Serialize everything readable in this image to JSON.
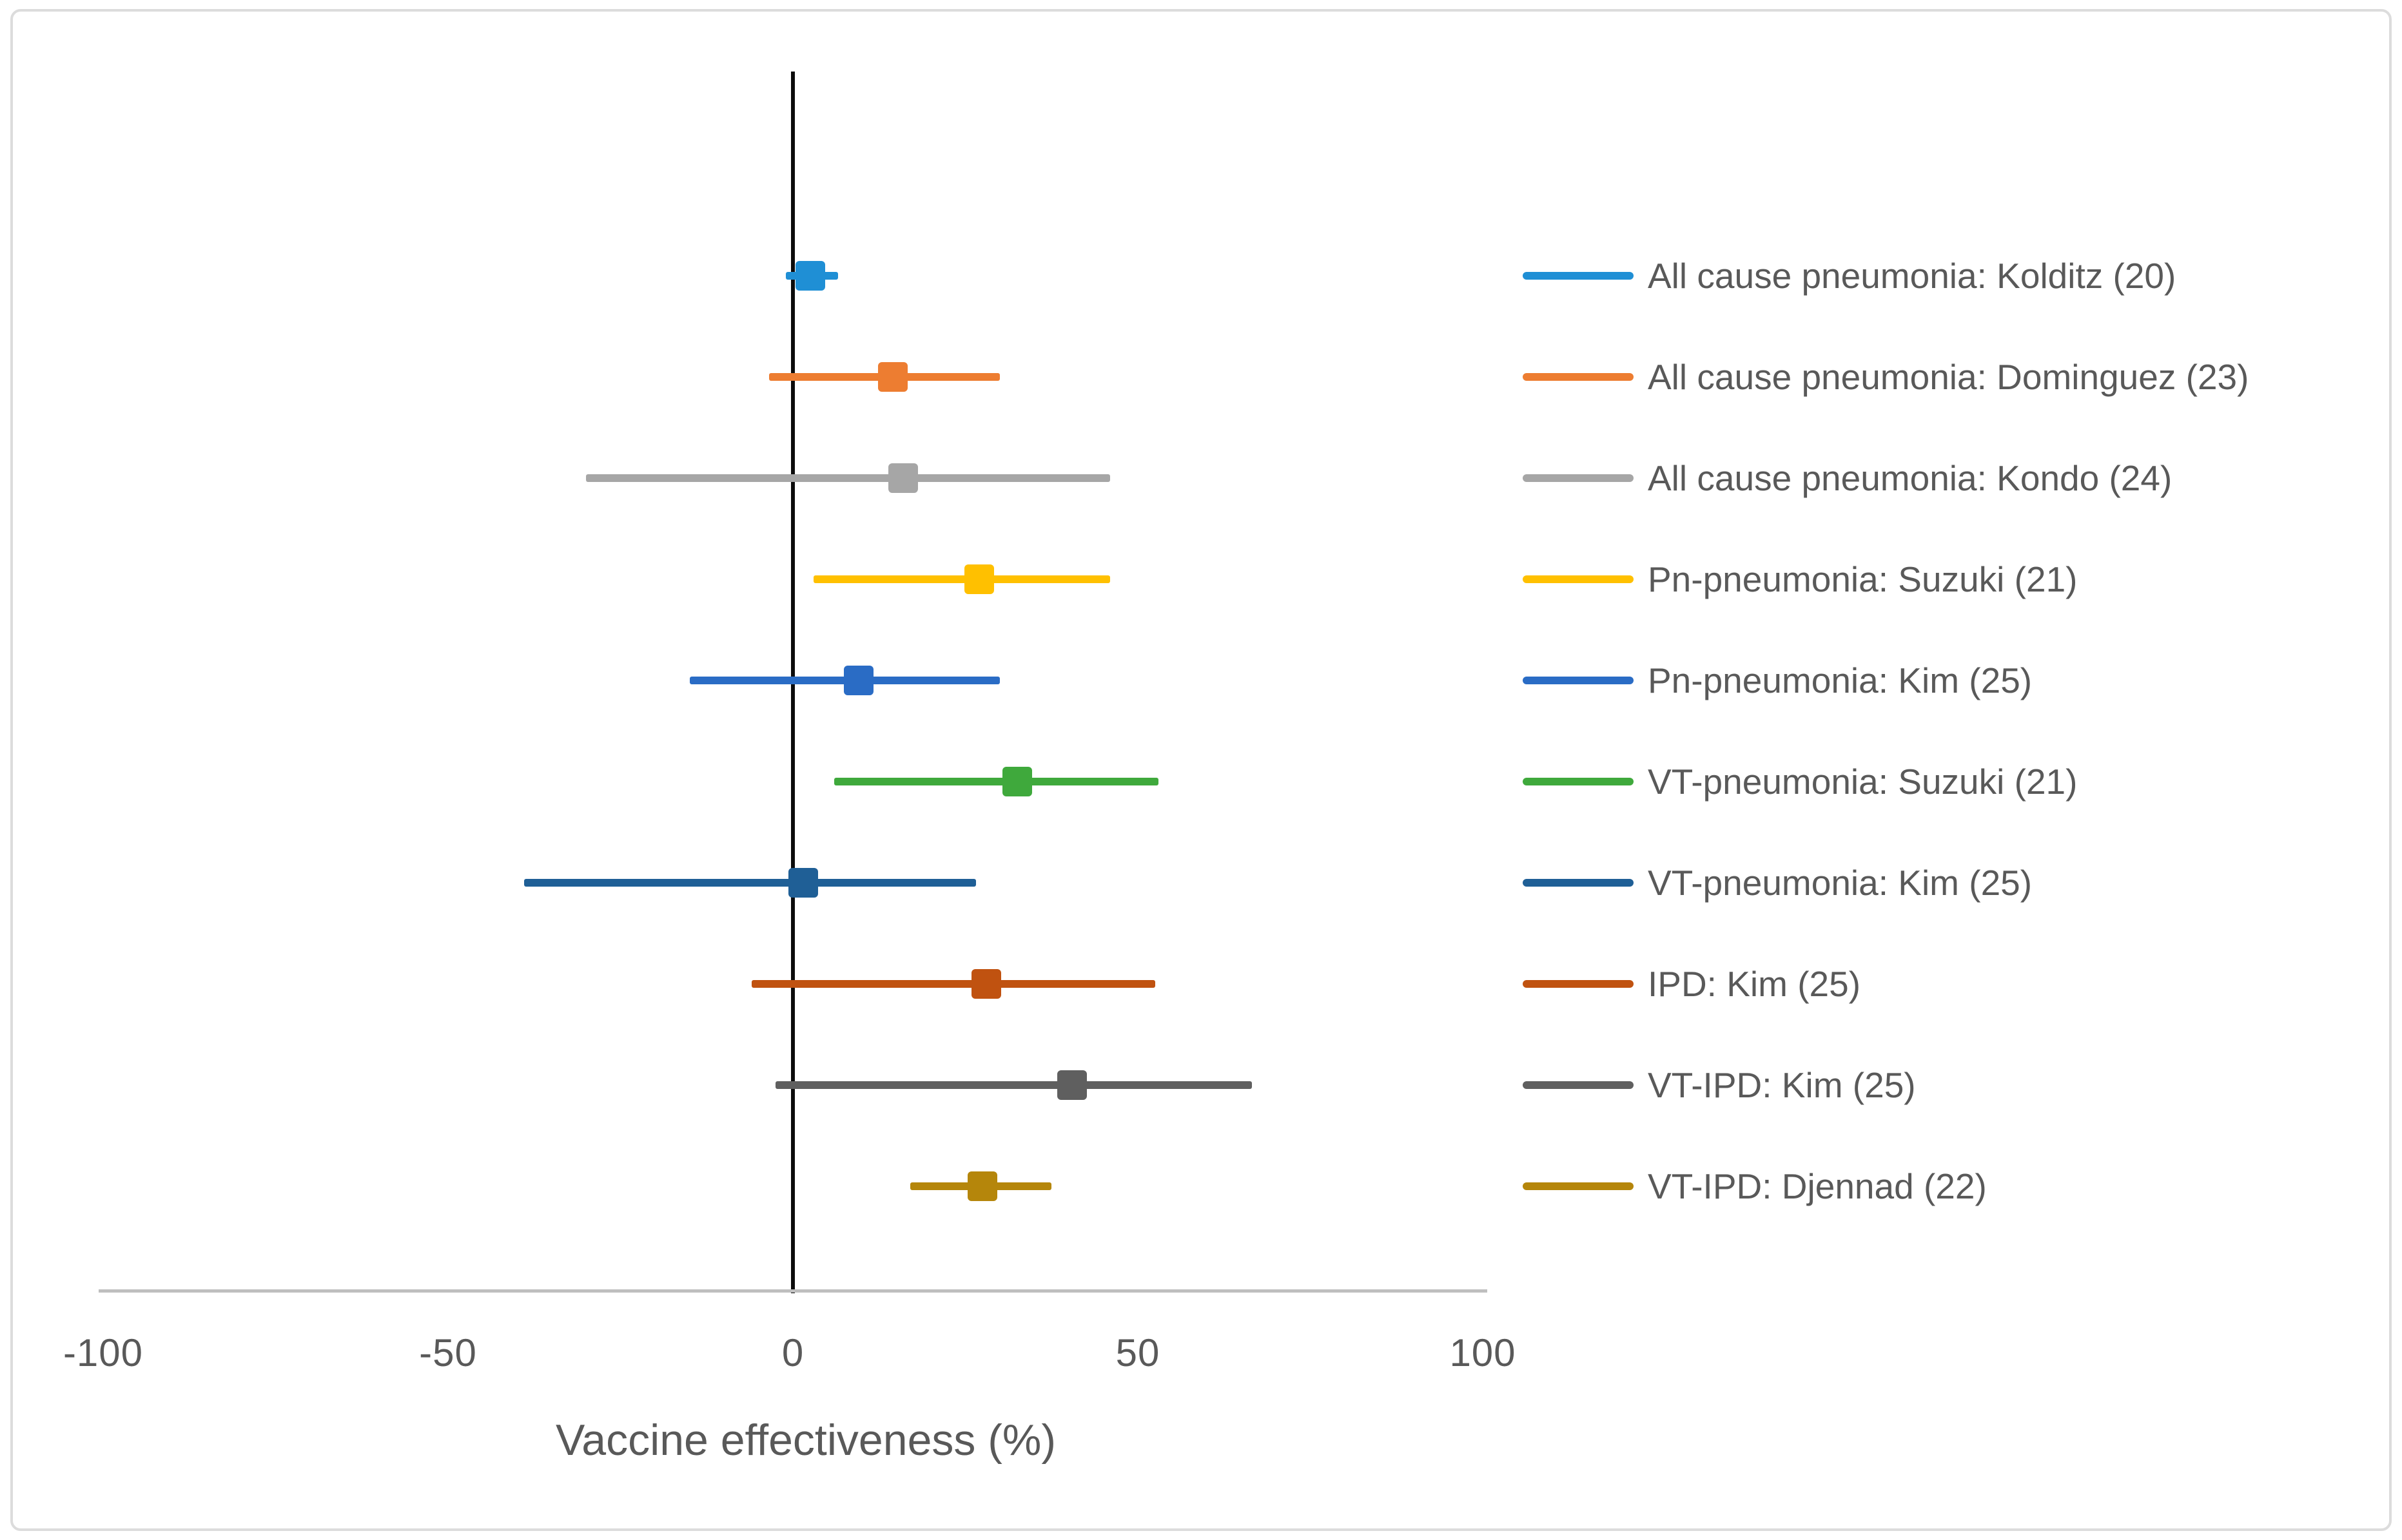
{
  "figure": {
    "background": "#ffffff",
    "border_color": "#dcdcdc",
    "text_color": "#595959",
    "zero_line_color": "#0b0b0b",
    "axis_line_color": "#bfbfbf"
  },
  "chart_data": {
    "type": "scatter",
    "subtype": "forest-plot",
    "title": "",
    "xlabel": "Vaccine effectiveness (%)",
    "ylabel": "",
    "xlim": [
      -100,
      100
    ],
    "x_ticks": [
      -100,
      -50,
      0,
      50,
      100
    ],
    "x_tick_labels": [
      "-100",
      "-50",
      "0",
      "50",
      "100"
    ],
    "grid": false,
    "zero_reference_line_at": 0,
    "legend_position": "right",
    "marker_shape": "square",
    "series": [
      {
        "label": "All cause pneumonia: Kolditz (20)",
        "color": "#1f8fd5",
        "ve": 2.5,
        "ci_low": -1,
        "ci_high": 6.5
      },
      {
        "label": "All cause pneumonia: Dominguez (23)",
        "color": "#ed7d31",
        "ve": 14.5,
        "ci_low": -3.5,
        "ci_high": 30
      },
      {
        "label": "All cause pneumonia: Kondo (24)",
        "color": "#a6a6a6",
        "ve": 16,
        "ci_low": -30,
        "ci_high": 46
      },
      {
        "label": "Pn-pneumonia: Suzuki (21)",
        "color": "#ffc000",
        "ve": 27,
        "ci_low": 3,
        "ci_high": 46
      },
      {
        "label": "Pn-pneumonia: Kim (25)",
        "color": "#2a6cc5",
        "ve": 9.5,
        "ci_low": -15,
        "ci_high": 30
      },
      {
        "label": "VT-pneumonia: Suzuki (21)",
        "color": "#3fa93c",
        "ve": 32.5,
        "ci_low": 6,
        "ci_high": 53
      },
      {
        "label": "VT-pneumonia: Kim (25)",
        "color": "#1f5f96",
        "ve": 1.5,
        "ci_low": -39,
        "ci_high": 26.5
      },
      {
        "label": "IPD: Kim (25)",
        "color": "#c05210",
        "ve": 28,
        "ci_low": -6,
        "ci_high": 52.5
      },
      {
        "label": "VT-IPD: Kim (25)",
        "color": "#5f5f5f",
        "ve": 40.5,
        "ci_low": -2.5,
        "ci_high": 66.5
      },
      {
        "label": "VT-IPD: Djennad (22)",
        "color": "#b5860b",
        "ve": 27.5,
        "ci_low": 17,
        "ci_high": 37.5
      }
    ]
  }
}
